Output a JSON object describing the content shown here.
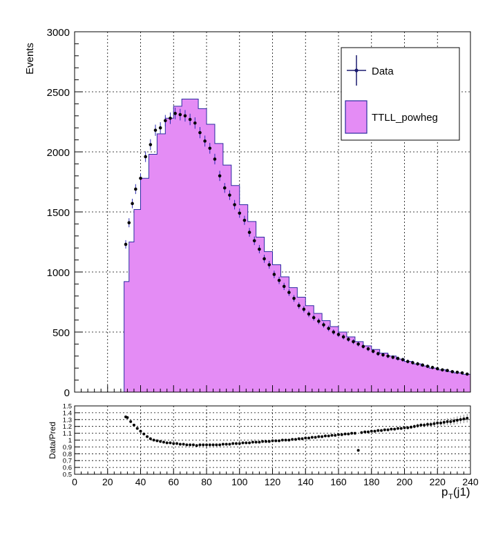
{
  "chart_data": [
    {
      "type": "histogram",
      "panel": "main",
      "ylabel": "Events",
      "xlim": [
        0,
        240
      ],
      "ylim": [
        0,
        3000
      ],
      "grid": true,
      "x_ticks": [
        0,
        20,
        40,
        60,
        80,
        100,
        120,
        140,
        160,
        180,
        200,
        220,
        240
      ],
      "y_ticks": [
        0,
        500,
        1000,
        1500,
        2000,
        2500,
        3000
      ],
      "legend_position": "top-right",
      "legend": [
        {
          "label": "Data",
          "style": "marker-errorbar",
          "color": "#1a1a6e"
        },
        {
          "label": "TTLL_powheg",
          "style": "filled",
          "color": "#e48cf5"
        }
      ],
      "series": [
        {
          "name": "TTLL_powheg",
          "kind": "filled-histogram",
          "points": [
            [
              30,
              920
            ],
            [
              33,
              1250
            ],
            [
              36,
              1520
            ],
            [
              40,
              1780
            ],
            [
              45,
              1980
            ],
            [
              50,
              2150
            ],
            [
              55,
              2280
            ],
            [
              60,
              2380
            ],
            [
              65,
              2440
            ],
            [
              70,
              2440
            ],
            [
              75,
              2360
            ],
            [
              80,
              2230
            ],
            [
              85,
              2070
            ],
            [
              90,
              1890
            ],
            [
              95,
              1720
            ],
            [
              100,
              1560
            ],
            [
              105,
              1420
            ],
            [
              110,
              1290
            ],
            [
              115,
              1170
            ],
            [
              120,
              1060
            ],
            [
              125,
              960
            ],
            [
              130,
              870
            ],
            [
              135,
              790
            ],
            [
              140,
              720
            ],
            [
              145,
              655
            ],
            [
              150,
              595
            ],
            [
              155,
              545
            ],
            [
              160,
              500
            ],
            [
              165,
              460
            ],
            [
              170,
              420
            ],
            [
              175,
              385
            ],
            [
              180,
              355
            ],
            [
              185,
              325
            ],
            [
              190,
              300
            ],
            [
              195,
              275
            ],
            [
              200,
              255
            ],
            [
              205,
              235
            ],
            [
              210,
              218
            ],
            [
              215,
              200
            ],
            [
              220,
              185
            ],
            [
              225,
              172
            ],
            [
              230,
              160
            ],
            [
              235,
              148
            ],
            [
              240,
              135
            ]
          ]
        },
        {
          "name": "Data",
          "kind": "points-with-errors",
          "points": [
            [
              31,
              1230
            ],
            [
              33,
              1410
            ],
            [
              35,
              1570
            ],
            [
              37,
              1690
            ],
            [
              40,
              1780
            ],
            [
              43,
              1960
            ],
            [
              46,
              2060
            ],
            [
              49,
              2180
            ],
            [
              52,
              2200
            ],
            [
              55,
              2260
            ],
            [
              58,
              2280
            ],
            [
              61,
              2320
            ],
            [
              64,
              2310
            ],
            [
              67,
              2300
            ],
            [
              70,
              2270
            ],
            [
              73,
              2240
            ],
            [
              76,
              2160
            ],
            [
              79,
              2090
            ],
            [
              82,
              2030
            ],
            [
              85,
              1940
            ],
            [
              88,
              1800
            ],
            [
              91,
              1700
            ],
            [
              94,
              1640
            ],
            [
              97,
              1560
            ],
            [
              100,
              1490
            ],
            [
              103,
              1430
            ],
            [
              106,
              1330
            ],
            [
              109,
              1260
            ],
            [
              112,
              1190
            ],
            [
              115,
              1110
            ],
            [
              118,
              1060
            ],
            [
              121,
              980
            ],
            [
              124,
              930
            ],
            [
              127,
              880
            ],
            [
              130,
              830
            ],
            [
              133,
              780
            ],
            [
              136,
              720
            ],
            [
              139,
              690
            ],
            [
              142,
              650
            ],
            [
              145,
              620
            ],
            [
              148,
              590
            ],
            [
              151,
              560
            ],
            [
              154,
              530
            ],
            [
              157,
              500
            ],
            [
              160,
              480
            ],
            [
              163,
              460
            ],
            [
              166,
              440
            ],
            [
              169,
              420
            ],
            [
              172,
              400
            ],
            [
              175,
              380
            ],
            [
              178,
              360
            ],
            [
              181,
              340
            ],
            [
              184,
              320
            ],
            [
              187,
              310
            ],
            [
              190,
              300
            ],
            [
              193,
              290
            ],
            [
              196,
              280
            ],
            [
              199,
              270
            ],
            [
              202,
              255
            ],
            [
              205,
              245
            ],
            [
              208,
              235
            ],
            [
              211,
              225
            ],
            [
              214,
              215
            ],
            [
              217,
              205
            ],
            [
              220,
              195
            ],
            [
              223,
              185
            ],
            [
              226,
              180
            ],
            [
              229,
              170
            ],
            [
              232,
              165
            ],
            [
              235,
              160
            ],
            [
              238,
              150
            ]
          ]
        }
      ]
    },
    {
      "type": "scatter",
      "panel": "ratio",
      "xlabel": "p_T(j1)",
      "ylabel": "Data/Pred",
      "xlim": [
        0,
        240
      ],
      "ylim": [
        0.5,
        1.5
      ],
      "grid": true,
      "x_ticks": [
        0,
        20,
        40,
        60,
        80,
        100,
        120,
        140,
        160,
        180,
        200,
        220,
        240
      ],
      "y_ticks": [
        0.5,
        0.6,
        0.7,
        0.8,
        0.9,
        1,
        1.1,
        1.2,
        1.3,
        1.4,
        1.5
      ],
      "series": [
        {
          "name": "Data/Pred",
          "points": [
            [
              31,
              1.34
            ],
            [
              32,
              1.33
            ],
            [
              34,
              1.27
            ],
            [
              36,
              1.22
            ],
            [
              38,
              1.17
            ],
            [
              40,
              1.13
            ],
            [
              42,
              1.09
            ],
            [
              44,
              1.05
            ],
            [
              46,
              1.02
            ],
            [
              48,
              1.0
            ],
            [
              50,
              0.99
            ],
            [
              52,
              0.98
            ],
            [
              54,
              0.97
            ],
            [
              56,
              0.96
            ],
            [
              58,
              0.96
            ],
            [
              60,
              0.95
            ],
            [
              62,
              0.95
            ],
            [
              64,
              0.94
            ],
            [
              66,
              0.94
            ],
            [
              68,
              0.93
            ],
            [
              70,
              0.93
            ],
            [
              72,
              0.93
            ],
            [
              74,
              0.92
            ],
            [
              76,
              0.93
            ],
            [
              78,
              0.93
            ],
            [
              80,
              0.93
            ],
            [
              82,
              0.93
            ],
            [
              84,
              0.93
            ],
            [
              86,
              0.93
            ],
            [
              88,
              0.93
            ],
            [
              90,
              0.94
            ],
            [
              92,
              0.94
            ],
            [
              94,
              0.94
            ],
            [
              96,
              0.95
            ],
            [
              98,
              0.95
            ],
            [
              100,
              0.95
            ],
            [
              102,
              0.96
            ],
            [
              104,
              0.96
            ],
            [
              106,
              0.96
            ],
            [
              108,
              0.97
            ],
            [
              110,
              0.97
            ],
            [
              112,
              0.97
            ],
            [
              114,
              0.98
            ],
            [
              116,
              0.98
            ],
            [
              118,
              0.98
            ],
            [
              120,
              0.99
            ],
            [
              122,
              0.99
            ],
            [
              124,
              0.99
            ],
            [
              126,
              1.0
            ],
            [
              128,
              1.0
            ],
            [
              130,
              1.0
            ],
            [
              132,
              1.01
            ],
            [
              134,
              1.01
            ],
            [
              136,
              1.02
            ],
            [
              138,
              1.02
            ],
            [
              140,
              1.03
            ],
            [
              142,
              1.03
            ],
            [
              144,
              1.04
            ],
            [
              146,
              1.04
            ],
            [
              148,
              1.05
            ],
            [
              150,
              1.05
            ],
            [
              152,
              1.06
            ],
            [
              154,
              1.06
            ],
            [
              156,
              1.07
            ],
            [
              158,
              1.07
            ],
            [
              160,
              1.08
            ],
            [
              162,
              1.08
            ],
            [
              164,
              1.09
            ],
            [
              166,
              1.09
            ],
            [
              168,
              1.1
            ],
            [
              170,
              1.1
            ],
            [
              172,
              0.85
            ],
            [
              174,
              1.11
            ],
            [
              176,
              1.12
            ],
            [
              178,
              1.12
            ],
            [
              180,
              1.13
            ],
            [
              182,
              1.13
            ],
            [
              184,
              1.14
            ],
            [
              186,
              1.14
            ],
            [
              188,
              1.15
            ],
            [
              190,
              1.15
            ],
            [
              192,
              1.16
            ],
            [
              194,
              1.16
            ],
            [
              196,
              1.17
            ],
            [
              198,
              1.17
            ],
            [
              200,
              1.18
            ],
            [
              202,
              1.18
            ],
            [
              204,
              1.19
            ],
            [
              206,
              1.2
            ],
            [
              208,
              1.21
            ],
            [
              210,
              1.22
            ],
            [
              212,
              1.22
            ],
            [
              214,
              1.23
            ],
            [
              216,
              1.23
            ],
            [
              218,
              1.24
            ],
            [
              220,
              1.25
            ],
            [
              222,
              1.25
            ],
            [
              224,
              1.26
            ],
            [
              226,
              1.27
            ],
            [
              228,
              1.27
            ],
            [
              230,
              1.28
            ],
            [
              232,
              1.29
            ],
            [
              234,
              1.3
            ],
            [
              236,
              1.31
            ],
            [
              238,
              1.32
            ]
          ]
        }
      ]
    }
  ]
}
